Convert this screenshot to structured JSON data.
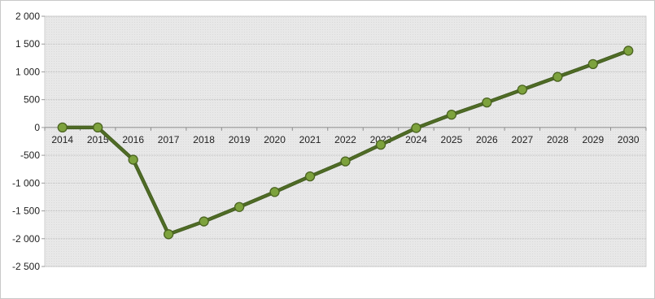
{
  "chart_data": {
    "type": "line",
    "title": "",
    "xlabel": "",
    "ylabel": "",
    "categories": [
      "2014",
      "2015",
      "2016",
      "2017",
      "2018",
      "2019",
      "2020",
      "2021",
      "2022",
      "2023",
      "2024",
      "2025",
      "2026",
      "2027",
      "2028",
      "2029",
      "2030"
    ],
    "series": [
      {
        "values": [
          0,
          0,
          -580,
          -1920,
          -1690,
          -1430,
          -1160,
          -880,
          -610,
          -310,
          -10,
          230,
          450,
          680,
          910,
          1140,
          1380
        ]
      }
    ],
    "ylim": [
      -2500,
      2000
    ],
    "yticks": [
      2000,
      1500,
      1000,
      500,
      0,
      -500,
      -1000,
      -1500,
      -2000,
      -2500
    ],
    "ytick_labels": [
      "2 000",
      "1 500",
      "1 000",
      "500",
      "0",
      "-500",
      "-1 000",
      "-1 500",
      "-2 000",
      "-2 500"
    ],
    "grid": true,
    "legend": "none",
    "colors": {
      "line": "#4f6b26",
      "marker_fill": "#7da23d",
      "marker_stroke": "#4a6320",
      "plot_bg": "#e6e6e6",
      "grid": "#bdbdbd"
    }
  }
}
